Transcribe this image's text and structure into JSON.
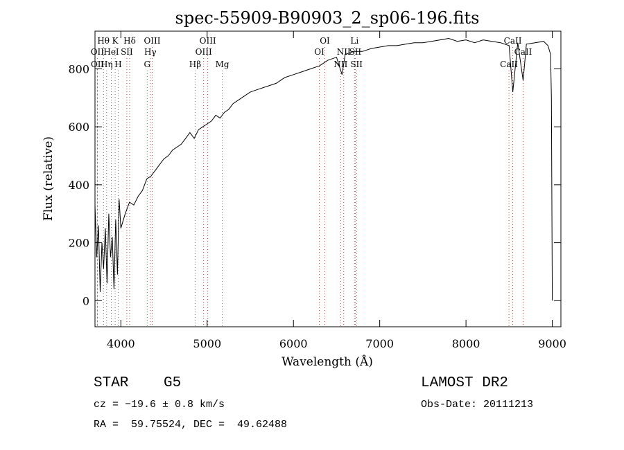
{
  "chart_data": {
    "type": "line",
    "title": "spec-55909-B90903_2_sp06-196.fits",
    "xlabel": "Wavelength (Å)",
    "ylabel": "Flux (relative)",
    "xlim": [
      3700,
      9100
    ],
    "ylim": [
      -90,
      930
    ],
    "xticks": [
      4000,
      5000,
      6000,
      7000,
      8000,
      9000
    ],
    "yticks": [
      0,
      200,
      400,
      600,
      800
    ],
    "grid": false,
    "legend": "none",
    "series": [
      {
        "x": [
          3700,
          3720,
          3740,
          3760,
          3780,
          3800,
          3820,
          3840,
          3860,
          3880,
          3900,
          3920,
          3940,
          3960,
          3980,
          4000,
          4050,
          4100,
          4150,
          4200,
          4250,
          4300,
          4350,
          4400,
          4450,
          4500,
          4550,
          4600,
          4650,
          4700,
          4750,
          4800,
          4850,
          4900,
          4950,
          5000,
          5050,
          5100,
          5150,
          5200,
          5250,
          5300,
          5400,
          5500,
          5600,
          5700,
          5800,
          5900,
          6000,
          6100,
          6200,
          6300,
          6400,
          6500,
          6563,
          6600,
          6700,
          6800,
          6900,
          7000,
          7100,
          7200,
          7300,
          7400,
          7500,
          7600,
          7700,
          7800,
          7900,
          8000,
          8100,
          8200,
          8300,
          8400,
          8500,
          8542,
          8600,
          8662,
          8700,
          8800,
          8900,
          8950,
          8980,
          8990,
          9000
        ],
        "y": [
          330,
          150,
          260,
          30,
          200,
          110,
          250,
          60,
          300,
          150,
          220,
          40,
          280,
          90,
          350,
          250,
          300,
          340,
          330,
          360,
          380,
          420,
          430,
          450,
          470,
          490,
          500,
          520,
          530,
          540,
          560,
          580,
          560,
          590,
          600,
          610,
          620,
          640,
          630,
          650,
          660,
          680,
          700,
          720,
          730,
          740,
          750,
          770,
          780,
          790,
          800,
          810,
          830,
          840,
          780,
          850,
          860,
          860,
          870,
          875,
          880,
          880,
          885,
          890,
          890,
          895,
          900,
          905,
          895,
          900,
          890,
          900,
          895,
          890,
          880,
          720,
          890,
          760,
          885,
          890,
          895,
          880,
          850,
          700,
          0
        ]
      }
    ],
    "line_markers": [
      {
        "label": "Hθ",
        "x": 3798,
        "row": 1,
        "color": "#666666"
      },
      {
        "label": "OII",
        "x": 3727,
        "row": 2,
        "color": "#666666"
      },
      {
        "label": "OII",
        "x": 3729,
        "row": 3,
        "color": "#666666"
      },
      {
        "label": "K",
        "x": 3934,
        "row": 1,
        "color": "#666666"
      },
      {
        "label": "HeI",
        "x": 3889,
        "row": 2,
        "color": "#666666"
      },
      {
        "label": "Hη",
        "x": 3835,
        "row": 3,
        "color": "#666666"
      },
      {
        "label": "H",
        "x": 3969,
        "row": 3,
        "color": "#666666"
      },
      {
        "label": "SII",
        "x": 4069,
        "row": 2,
        "color": "#cc3333"
      },
      {
        "label": "Hδ",
        "x": 4102,
        "row": 1,
        "color": "#666666"
      },
      {
        "label": "OIII",
        "x": 4363,
        "row": 1,
        "color": "#cc3333"
      },
      {
        "label": "Hγ",
        "x": 4341,
        "row": 2,
        "color": "#666666"
      },
      {
        "label": "G",
        "x": 4305,
        "row": 3,
        "color": "#666666"
      },
      {
        "label": "Hβ",
        "x": 4861,
        "row": 3,
        "color": "#666666"
      },
      {
        "label": "OIII",
        "x": 5007,
        "row": 1,
        "color": "#cc3333"
      },
      {
        "label": "OIII",
        "x": 4959,
        "row": 2,
        "color": "#cc3333"
      },
      {
        "label": "Mg",
        "x": 5175,
        "row": 3,
        "color": "#666666"
      },
      {
        "label": "OI",
        "x": 6364,
        "row": 1,
        "color": "#cc3333"
      },
      {
        "label": "OI",
        "x": 6300,
        "row": 2,
        "color": "#cc3333"
      },
      {
        "label": "Li",
        "x": 6708,
        "row": 1,
        "color": "#666666"
      },
      {
        "label": "NII",
        "x": 6583,
        "row": 2,
        "color": "#cc3333"
      },
      {
        "label": "SII",
        "x": 6716,
        "row": 2,
        "color": "#cc3333"
      },
      {
        "label": "NII",
        "x": 6548,
        "row": 3,
        "color": "#cc3333"
      },
      {
        "label": "SII",
        "x": 6731,
        "row": 3,
        "color": "#cc3333"
      },
      {
        "label": "CaII",
        "x": 8542,
        "row": 1,
        "color": "#cc3333"
      },
      {
        "label": "CaII",
        "x": 8662,
        "row": 2,
        "color": "#cc3333"
      },
      {
        "label": "CaII",
        "x": 8498,
        "row": 3,
        "color": "#cc3333"
      }
    ]
  },
  "info": {
    "class": "STAR",
    "subclass": "G5",
    "survey": "LAMOST DR2",
    "cz": "cz = −19.6 ± 0.8 km/s",
    "obs_date": "Obs-Date: 20111213",
    "coords": "RA =  59.75524, DEC =  49.62488"
  }
}
